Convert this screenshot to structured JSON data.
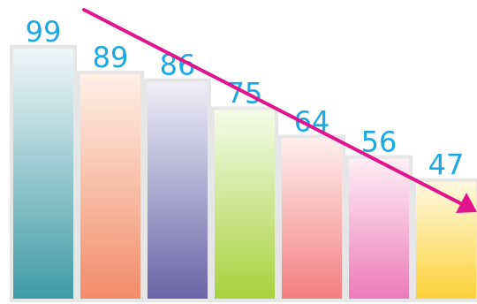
{
  "chart_data": {
    "type": "bar",
    "categories": [
      "",
      "",
      "",
      "",
      "",
      "",
      ""
    ],
    "values": [
      99,
      89,
      86,
      75,
      64,
      56,
      47
    ],
    "data_labels": [
      "99",
      "89",
      "86",
      "75",
      "64",
      "56",
      "47"
    ],
    "title": "",
    "xlabel": "",
    "ylabel": "",
    "grid": false,
    "legend": "none",
    "trend_arrow": "decreasing",
    "colors": {
      "label": "#1ba8e3",
      "arrow": "#e0148c",
      "bar_border": "#e6e6e6",
      "bars": [
        {
          "top": "#f1f7f8",
          "bottom": "#3e9aa5"
        },
        {
          "top": "#fff1e8",
          "bottom": "#f28b68"
        },
        {
          "top": "#f1f0f8",
          "bottom": "#6a62a7"
        },
        {
          "top": "#f6fbeb",
          "bottom": "#a7d13b"
        },
        {
          "top": "#fff0ef",
          "bottom": "#f37d7f"
        },
        {
          "top": "#fff0f6",
          "bottom": "#ec7ab7"
        },
        {
          "top": "#fff9e2",
          "bottom": "#fcd137"
        }
      ]
    }
  }
}
